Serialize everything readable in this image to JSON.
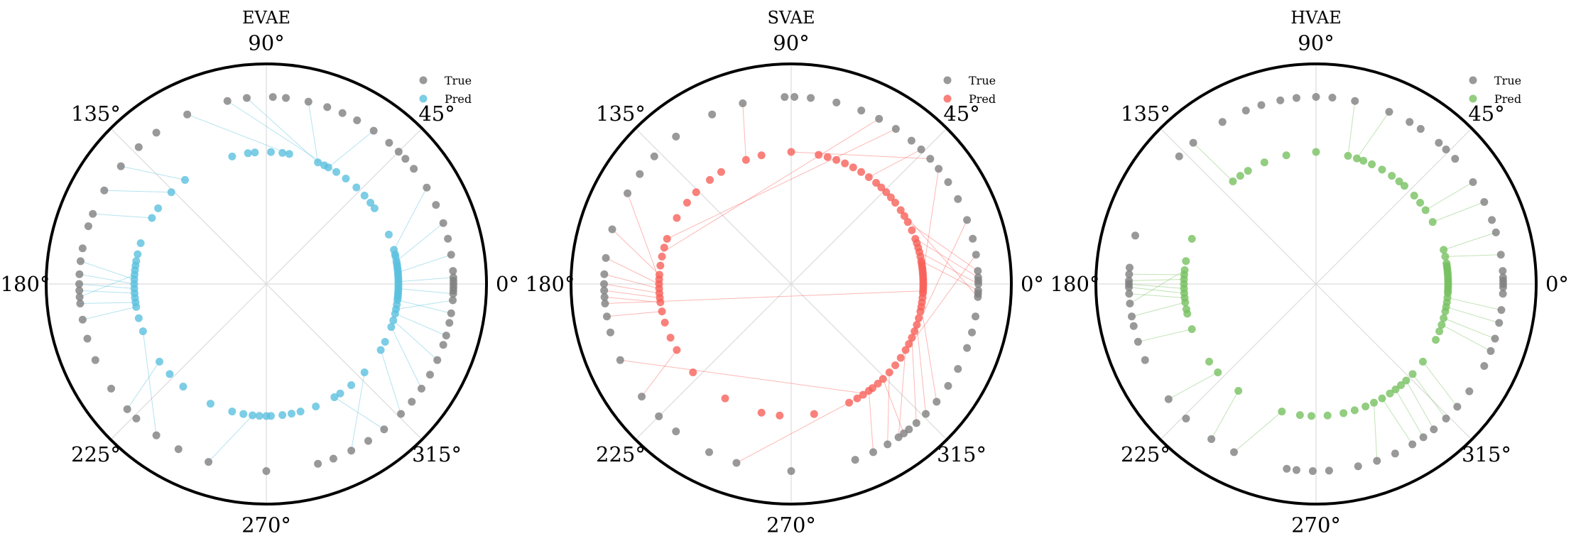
{
  "chart_data": [
    {
      "type": "scatter",
      "projection": "polar",
      "title": "EVAE",
      "angle_ticks": [
        "0°",
        "45°",
        "90°",
        "135°",
        "180°",
        "225°",
        "270°",
        "315°"
      ],
      "angle_tick_values_deg": [
        0,
        45,
        90,
        135,
        180,
        225,
        270,
        315
      ],
      "radial_lim": [
        0,
        1
      ],
      "grid": true,
      "legend_position": "top-right",
      "series": [
        {
          "name": "True",
          "r": 0.85,
          "color": "#7f7f7f",
          "theta_deg": [
            0,
            2,
            4,
            357,
            355,
            359,
            1,
            358,
            9,
            14,
            19,
            25,
            31,
            38,
            42,
            45,
            49,
            55,
            61,
            66,
            71,
            77,
            84,
            88,
            96,
            102,
            115,
            126,
            133,
            141,
            150,
            158,
            162,
            169,
            173,
            177,
            180,
            182,
            184,
            186,
            191,
            197,
            204,
            214,
            222,
            226,
            234,
            242,
            252,
            270,
            286,
            291,
            297,
            303,
            309,
            316,
            321,
            326,
            331,
            336,
            341,
            344,
            348,
            351
          ]
        },
        {
          "name": "Pred",
          "r": 0.6,
          "color": "#5bc0de",
          "theta_deg": [
            0,
            1,
            2,
            3,
            4,
            5,
            6,
            7,
            8,
            9,
            10,
            12,
            13,
            15,
            22,
            35,
            38,
            42,
            47,
            53,
            58,
            62,
            64,
            67,
            80,
            83,
            88,
            95,
            98,
            105,
            128,
            136,
            145,
            150,
            162,
            167,
            170,
            172,
            174,
            176,
            178,
            180,
            182,
            184,
            186,
            188,
            190,
            195,
            201,
            216,
            223,
            231,
            245,
            255,
            260,
            264,
            267,
            270,
            272,
            277,
            281,
            285,
            292,
            301,
            304,
            310,
            318,
            330,
            334,
            341,
            344,
            347,
            349,
            351,
            353,
            354,
            355,
            356,
            357,
            358,
            359
          ]
        },
        {
          "name": "",
          "kind": "links",
          "color": "#5bc0de",
          "pairs_deg": [
            [
              357,
              358
            ],
            [
              2,
              1
            ],
            [
              9,
              5
            ],
            [
              19,
              10
            ],
            [
              31,
              15
            ],
            [
              55,
              62
            ],
            [
              77,
              67
            ],
            [
              96,
              67
            ],
            [
              102,
              58
            ],
            [
              115,
              80
            ],
            [
              141,
              128
            ],
            [
              150,
              136
            ],
            [
              158,
              150
            ],
            [
              177,
              180
            ],
            [
              180,
              182
            ],
            [
              182,
              184
            ],
            [
              184,
              176
            ],
            [
              186,
              188
            ],
            [
              191,
              190
            ],
            [
              173,
              178
            ],
            [
              222,
              216
            ],
            [
              234,
              201
            ],
            [
              252,
              264
            ],
            [
              297,
              318
            ],
            [
              309,
              301
            ],
            [
              316,
              330
            ],
            [
              326,
              341
            ],
            [
              336,
              344
            ],
            [
              344,
              347
            ],
            [
              351,
              353
            ],
            [
              355,
              349
            ]
          ]
        }
      ]
    },
    {
      "type": "scatter",
      "projection": "polar",
      "title": "SVAE",
      "angle_ticks": [
        "0°",
        "45°",
        "90°",
        "135°",
        "180°",
        "225°",
        "270°",
        "315°"
      ],
      "angle_tick_values_deg": [
        0,
        45,
        90,
        135,
        180,
        225,
        270,
        315
      ],
      "radial_lim": [
        0,
        1
      ],
      "grid": true,
      "legend_position": "top-right",
      "series": [
        {
          "name": "True",
          "r": 0.85,
          "color": "#7f7f7f",
          "theta_deg": [
            0,
            2,
            4,
            356,
            358,
            1,
            357,
            9,
            14,
            20,
            27,
            33,
            38,
            42,
            46,
            50,
            56,
            62,
            68,
            76,
            84,
            89,
            92,
            105,
            115,
            128,
            137,
            144,
            151,
            163,
            172,
            177,
            180,
            182,
            184,
            186,
            190,
            195,
            204,
            217,
            225,
            232,
            244,
            253,
            270,
            290,
            296,
            301,
            305,
            307,
            309,
            312,
            316,
            321,
            327,
            333,
            340,
            345,
            350
          ]
        },
        {
          "name": "Pred",
          "r": 0.6,
          "color": "#f8615a",
          "theta_deg": [
            0,
            1,
            2,
            3,
            4,
            5,
            6,
            7,
            8,
            9,
            10,
            12,
            14,
            16,
            18,
            20,
            24,
            28,
            31,
            34,
            38,
            41,
            44,
            47,
            50,
            54,
            58,
            62,
            66,
            70,
            74,
            78,
            90,
            103,
            110,
            122,
            128,
            136,
            142,
            150,
            160,
            164,
            168,
            172,
            176,
            178,
            180,
            182,
            184,
            186,
            188,
            192,
            197,
            204,
            210,
            222,
            240,
            257,
            265,
            280,
            296,
            300,
            303,
            306,
            308,
            311,
            314,
            318,
            322,
            326,
            330,
            333,
            336,
            339,
            342,
            345,
            348,
            350,
            352,
            354,
            356,
            357,
            358,
            359
          ]
        },
        {
          "name": "",
          "kind": "links",
          "color": "#f8615a",
          "pairs_deg": [
            [
              0,
              14
            ],
            [
              2,
              20
            ],
            [
              4,
              28
            ],
            [
              356,
              34
            ],
            [
              358,
              10
            ],
            [
              9,
              326
            ],
            [
              20,
              333
            ],
            [
              38,
              339
            ],
            [
              42,
              90
            ],
            [
              46,
              54
            ],
            [
              56,
              160
            ],
            [
              62,
              166
            ],
            [
              105,
              110
            ],
            [
              151,
              178
            ],
            [
              163,
              176
            ],
            [
              172,
              180
            ],
            [
              177,
              182
            ],
            [
              180,
              184
            ],
            [
              182,
              186
            ],
            [
              184,
              188
            ],
            [
              186,
              357
            ],
            [
              190,
              192
            ],
            [
              204,
              304
            ],
            [
              217,
              210
            ],
            [
              253,
              300
            ],
            [
              296,
              306
            ],
            [
              301,
              318
            ],
            [
              305,
              330
            ],
            [
              307,
              314
            ],
            [
              312,
              336
            ],
            [
              316,
              342
            ],
            [
              321,
              350
            ]
          ]
        }
      ]
    },
    {
      "type": "scatter",
      "projection": "polar",
      "title": "HVAE",
      "angle_ticks": [
        "0°",
        "45°",
        "90°",
        "135°",
        "180°",
        "225°",
        "270°",
        "315°"
      ],
      "angle_tick_values_deg": [
        0,
        45,
        90,
        135,
        180,
        225,
        270,
        315
      ],
      "radial_lim": [
        0,
        1
      ],
      "grid": true,
      "legend_position": "top-right",
      "series": [
        {
          "name": "True",
          "r": 0.85,
          "color": "#7f7f7f",
          "theta_deg": [
            0,
            2,
            4,
            357,
            359,
            1,
            9,
            16,
            20,
            26,
            33,
            42,
            46,
            49,
            56,
            60,
            67,
            78,
            85,
            90,
            96,
            101,
            107,
            112,
            120,
            131,
            137,
            165,
            175,
            177,
            179,
            180,
            181,
            183,
            186,
            190,
            193,
            198,
            204,
            218,
            226,
            236,
            244,
            261,
            264,
            269,
            274,
            283,
            289,
            295,
            301,
            305,
            309,
            314,
            319,
            325,
            334,
            339,
            343,
            348,
            352
          ]
        },
        {
          "name": "Pred",
          "r": 0.6,
          "color": "#77c160",
          "theta_deg": [
            0,
            1,
            2,
            3,
            4,
            5,
            6,
            7,
            8,
            9,
            12,
            15,
            28,
            34,
            38,
            42,
            48,
            51,
            55,
            60,
            65,
            69,
            72,
            76,
            90,
            103,
            113,
            121,
            125,
            129,
            160,
            170,
            174,
            176,
            178,
            180,
            182,
            184,
            186,
            188,
            191,
            193,
            200,
            216,
            222,
            234,
            255,
            263,
            268,
            275,
            282,
            287,
            292,
            296,
            300,
            304,
            307,
            310,
            313,
            317,
            324,
            335,
            339,
            342,
            345,
            348,
            350,
            352,
            354,
            356,
            357,
            358,
            359
          ]
        },
        {
          "name": "",
          "kind": "links",
          "color": "#77c160",
          "pairs_deg": [
            [
              9,
              12
            ],
            [
              16,
              15
            ],
            [
              26,
              28
            ],
            [
              33,
              34
            ],
            [
              67,
              72
            ],
            [
              78,
              76
            ],
            [
              131,
              129
            ],
            [
              177,
              176
            ],
            [
              179,
              178
            ],
            [
              180,
              182
            ],
            [
              181,
              184
            ],
            [
              183,
              186
            ],
            [
              190,
              188
            ],
            [
              186,
              174
            ],
            [
              198,
              200
            ],
            [
              218,
              222
            ],
            [
              236,
              234
            ],
            [
              244,
              255
            ],
            [
              289,
              296
            ],
            [
              301,
              300
            ],
            [
              305,
              307
            ],
            [
              309,
              313
            ],
            [
              314,
              317
            ],
            [
              319,
              324
            ],
            [
              339,
              342
            ],
            [
              343,
              345
            ],
            [
              348,
              350
            ],
            [
              352,
              354
            ]
          ]
        }
      ]
    }
  ]
}
